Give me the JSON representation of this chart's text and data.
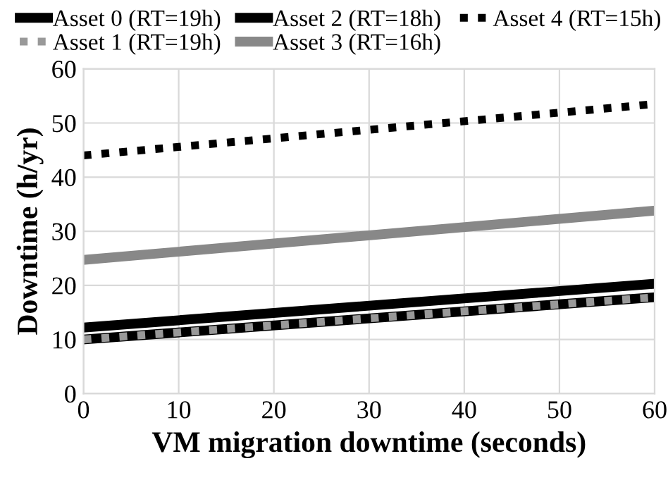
{
  "chart_data": {
    "type": "line",
    "xlabel": "VM migration downtime (seconds)",
    "ylabel": "Downtime (h/yr)",
    "x": [
      0,
      60
    ],
    "series": [
      {
        "name": "Asset 0 (RT=19h)",
        "color": "#000000",
        "values": [
          10,
          17.8
        ],
        "line_style": "solid"
      },
      {
        "name": "Asset 1 (RT=19h)",
        "color": "#999999",
        "values": [
          10,
          17.8
        ],
        "line_style": "dotted"
      },
      {
        "name": "Asset 2 (RT=18h)",
        "color": "#000000",
        "values": [
          12.2,
          20.3
        ],
        "line_style": "solid"
      },
      {
        "name": "Asset 3 (RT=16h)",
        "color": "#888888",
        "values": [
          24.7,
          33.8
        ],
        "line_style": "solid"
      },
      {
        "name": "Asset 4 (RT=15h)",
        "color": "#000000",
        "values": [
          44,
          53.5
        ],
        "line_style": "dotted"
      }
    ],
    "xlim": [
      0,
      60
    ],
    "xticks": [
      0,
      10,
      20,
      30,
      40,
      50,
      60
    ],
    "ylim": [
      0,
      60
    ],
    "yticks": [
      0,
      10,
      20,
      30,
      40,
      50,
      60
    ],
    "grid": true,
    "legend": "top",
    "marker": "none"
  }
}
